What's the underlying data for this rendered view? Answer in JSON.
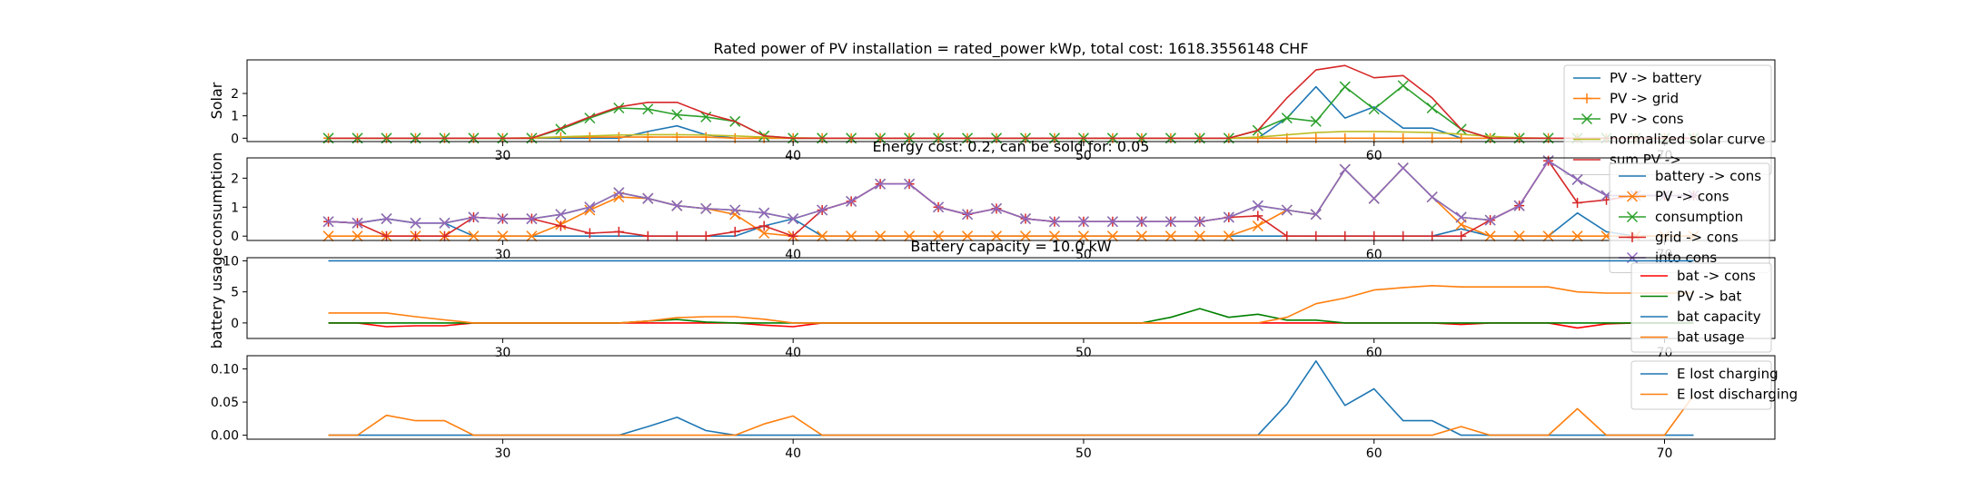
{
  "chart_data": [
    {
      "type": "line",
      "title": "Rated power of PV installation = rated_power kWp, total cost: 1618.3556148 CHF",
      "ylabel": "Solar",
      "xlim": [
        21.2,
        73.8
      ],
      "ylim": [
        -0.15,
        3.5
      ],
      "xticks": [
        30,
        40,
        50,
        60,
        70
      ],
      "yticks": [
        0,
        1,
        2
      ],
      "legend_position": "upper-right",
      "x": [
        24,
        25,
        26,
        27,
        28,
        29,
        30,
        31,
        32,
        33,
        34,
        35,
        36,
        37,
        38,
        39,
        40,
        41,
        42,
        43,
        44,
        45,
        46,
        47,
        48,
        49,
        50,
        51,
        52,
        53,
        54,
        55,
        56,
        57,
        58,
        59,
        60,
        61,
        62,
        63,
        64,
        65,
        66,
        67,
        68,
        69,
        70,
        71
      ],
      "series": [
        {
          "name": "PV -> battery",
          "color": "#1f77b4",
          "marker": "none",
          "values": [
            0,
            0,
            0,
            0,
            0,
            0,
            0,
            0,
            0,
            0,
            0,
            0.3,
            0.55,
            0.15,
            0,
            0,
            0,
            0,
            0,
            0,
            0,
            0,
            0,
            0,
            0,
            0,
            0,
            0,
            0,
            0,
            0,
            0,
            0,
            0.9,
            2.3,
            0.9,
            1.4,
            0.45,
            0.45,
            0,
            0,
            0,
            0,
            0,
            0,
            0,
            0,
            0
          ]
        },
        {
          "name": "PV -> grid",
          "color": "#ff7f0e",
          "marker": "plus",
          "values": [
            0,
            0,
            0,
            0,
            0,
            0,
            0,
            0,
            0.05,
            0.05,
            0.05,
            0.05,
            0.05,
            0.05,
            0,
            0,
            0,
            0,
            0,
            0,
            0,
            0,
            0,
            0,
            0,
            0,
            0,
            0,
            0,
            0,
            0,
            0,
            0,
            0,
            0,
            0,
            0,
            0,
            0,
            0,
            0,
            0,
            0,
            0,
            0,
            0,
            0,
            0
          ]
        },
        {
          "name": "PV -> cons",
          "color": "#2ca02c",
          "marker": "x",
          "values": [
            0,
            0,
            0,
            0,
            0,
            0,
            0,
            0,
            0.4,
            0.9,
            1.35,
            1.3,
            1.05,
            0.95,
            0.75,
            0.1,
            0,
            0,
            0,
            0,
            0,
            0,
            0,
            0,
            0,
            0,
            0,
            0,
            0,
            0,
            0,
            0,
            0.35,
            0.9,
            0.75,
            2.3,
            1.3,
            2.35,
            1.35,
            0.4,
            0,
            0,
            0,
            0,
            0,
            0,
            0,
            0
          ]
        },
        {
          "name": "normalized solar curve",
          "color": "#bcbd22",
          "marker": "none",
          "values": [
            0,
            0,
            0,
            0,
            0,
            0,
            0,
            0.02,
            0.06,
            0.1,
            0.14,
            0.16,
            0.16,
            0.14,
            0.1,
            0.05,
            0.02,
            0,
            0,
            0,
            0,
            0,
            0,
            0,
            0,
            0,
            0,
            0,
            0,
            0,
            0,
            0,
            0.05,
            0.15,
            0.25,
            0.3,
            0.3,
            0.28,
            0.25,
            0.18,
            0.08,
            0.02,
            0,
            0,
            0,
            0,
            0,
            0
          ]
        },
        {
          "name": "sum PV ->",
          "color": "#d62728",
          "marker": "none",
          "values": [
            0,
            0,
            0,
            0,
            0,
            0,
            0,
            0,
            0.45,
            0.95,
            1.4,
            1.6,
            1.6,
            1.1,
            0.75,
            0.1,
            0,
            0,
            0,
            0,
            0,
            0,
            0,
            0,
            0,
            0,
            0,
            0,
            0,
            0,
            0,
            0,
            0.35,
            1.8,
            3.05,
            3.25,
            2.7,
            2.8,
            1.8,
            0.4,
            0,
            0,
            0,
            0,
            0,
            0,
            0,
            0
          ]
        }
      ]
    },
    {
      "type": "line",
      "title": "Energy cost: 0.2, can be sold for: 0.05",
      "ylabel": "consumption",
      "xlim": [
        21.2,
        73.8
      ],
      "ylim": [
        -0.15,
        2.7
      ],
      "xticks": [
        30,
        40,
        50,
        60,
        70
      ],
      "yticks": [
        0,
        1,
        2
      ],
      "legend_position": "upper-right",
      "x": [
        24,
        25,
        26,
        27,
        28,
        29,
        30,
        31,
        32,
        33,
        34,
        35,
        36,
        37,
        38,
        39,
        40,
        41,
        42,
        43,
        44,
        45,
        46,
        47,
        48,
        49,
        50,
        51,
        52,
        53,
        54,
        55,
        56,
        57,
        58,
        59,
        60,
        61,
        62,
        63,
        64,
        65,
        66,
        67,
        68,
        69,
        70,
        71
      ],
      "series": [
        {
          "name": "battery -> cons",
          "color": "#1f77b4",
          "marker": "none",
          "values": [
            0.5,
            0.45,
            0.6,
            0.45,
            0.45,
            0,
            0,
            0,
            0,
            0,
            0,
            0,
            0,
            0,
            0,
            0.35,
            0.6,
            0,
            0,
            0,
            0,
            0,
            0,
            0,
            0,
            0,
            0,
            0,
            0,
            0,
            0,
            0,
            0,
            0,
            0,
            0,
            0,
            0,
            0,
            0.25,
            0,
            0,
            0,
            0.8,
            0.15,
            0,
            0,
            0
          ]
        },
        {
          "name": "PV -> cons",
          "color": "#ff7f0e",
          "marker": "x",
          "values": [
            0,
            0,
            0,
            0,
            0,
            0,
            0,
            0,
            0.4,
            0.9,
            1.35,
            1.3,
            1.05,
            0.95,
            0.75,
            0.1,
            0,
            0,
            0,
            0,
            0,
            0,
            0,
            0,
            0,
            0,
            0,
            0,
            0,
            0,
            0,
            0,
            0.35,
            0.9,
            0.75,
            2.3,
            1.3,
            2.35,
            1.35,
            0.4,
            0,
            0,
            0,
            0,
            0,
            0,
            0,
            0
          ]
        },
        {
          "name": "consumption",
          "color": "#2ca02c",
          "marker": "x",
          "values": [
            0.5,
            0.45,
            0.6,
            0.45,
            0.45,
            0.65,
            0.6,
            0.6,
            0.75,
            1.0,
            1.5,
            1.3,
            1.05,
            0.95,
            0.9,
            0.8,
            0.6,
            0.9,
            1.2,
            1.8,
            1.8,
            1.0,
            0.75,
            0.95,
            0.6,
            0.5,
            0.5,
            0.5,
            0.5,
            0.5,
            0.5,
            0.65,
            1.05,
            0.9,
            0.75,
            2.3,
            1.3,
            2.35,
            1.35,
            0.65,
            0.55,
            1.05,
            2.6,
            1.95,
            1.4,
            1.4,
            1.4,
            1.4
          ]
        },
        {
          "name": "grid -> cons",
          "color": "#d62728",
          "marker": "plus",
          "values": [
            0.5,
            0.45,
            0,
            0,
            0,
            0.65,
            0.6,
            0.6,
            0.35,
            0.1,
            0.15,
            0,
            0,
            0,
            0.15,
            0.35,
            0,
            0.9,
            1.2,
            1.8,
            1.8,
            1.0,
            0.75,
            0.95,
            0.6,
            0.5,
            0.5,
            0.5,
            0.5,
            0.5,
            0.5,
            0.65,
            0.7,
            0,
            0,
            0,
            0,
            0,
            0,
            0,
            0.55,
            1.05,
            2.6,
            1.15,
            1.25,
            1.4,
            1.4,
            1.4
          ]
        },
        {
          "name": "into cons",
          "color": "#9467bd",
          "marker": "x",
          "values": [
            0.5,
            0.45,
            0.6,
            0.45,
            0.45,
            0.65,
            0.6,
            0.6,
            0.75,
            1.0,
            1.5,
            1.3,
            1.05,
            0.95,
            0.9,
            0.8,
            0.6,
            0.9,
            1.2,
            1.8,
            1.8,
            1.0,
            0.75,
            0.95,
            0.6,
            0.5,
            0.5,
            0.5,
            0.5,
            0.5,
            0.5,
            0.65,
            1.05,
            0.9,
            0.75,
            2.3,
            1.3,
            2.35,
            1.35,
            0.65,
            0.55,
            1.05,
            2.6,
            1.95,
            1.4,
            1.4,
            1.4,
            1.4
          ]
        }
      ]
    },
    {
      "type": "line",
      "title": "Battery capacity = 10.0 kW",
      "ylabel": "battery usage",
      "xlim": [
        21.2,
        73.8
      ],
      "ylim": [
        -2.5,
        10.5
      ],
      "xticks": [
        30,
        40,
        50,
        60,
        70
      ],
      "yticks": [
        0,
        5,
        10
      ],
      "legend_position": "upper-right",
      "x": [
        24,
        25,
        26,
        27,
        28,
        29,
        30,
        31,
        32,
        33,
        34,
        35,
        36,
        37,
        38,
        39,
        40,
        41,
        42,
        43,
        44,
        45,
        46,
        47,
        48,
        49,
        50,
        51,
        52,
        53,
        54,
        55,
        56,
        57,
        58,
        59,
        60,
        61,
        62,
        63,
        64,
        65,
        66,
        67,
        68,
        69,
        70,
        71
      ],
      "series": [
        {
          "name": "bat -> cons",
          "color": "#ff0000",
          "marker": "none",
          "values": [
            0,
            0,
            -0.6,
            -0.45,
            -0.45,
            0,
            0,
            0,
            0,
            0,
            0,
            0,
            0,
            0,
            0,
            -0.35,
            -0.6,
            0,
            0,
            0,
            0,
            0,
            0,
            0,
            0,
            0,
            0,
            0,
            0,
            0,
            0,
            0,
            0,
            0,
            0,
            0,
            0,
            0,
            0,
            -0.25,
            0,
            0,
            0,
            -0.8,
            -0.15,
            0,
            0,
            0
          ]
        },
        {
          "name": "PV -> bat",
          "color": "#008000",
          "marker": "none",
          "values": [
            0,
            0,
            0,
            0,
            0,
            0,
            0,
            0,
            0,
            0,
            0,
            0.3,
            0.55,
            0.15,
            0,
            0,
            0,
            0,
            0,
            0,
            0,
            0,
            0,
            0,
            0,
            0,
            0,
            0,
            0,
            0.9,
            2.3,
            0.9,
            1.4,
            0.45,
            0.45,
            0,
            0,
            0,
            0,
            0,
            0,
            0,
            0,
            0,
            0,
            0,
            0,
            0
          ]
        },
        {
          "name": "bat capacity",
          "color": "#1f77b4",
          "marker": "none",
          "values": [
            10,
            10,
            10,
            10,
            10,
            10,
            10,
            10,
            10,
            10,
            10,
            10,
            10,
            10,
            10,
            10,
            10,
            10,
            10,
            10,
            10,
            10,
            10,
            10,
            10,
            10,
            10,
            10,
            10,
            10,
            10,
            10,
            10,
            10,
            10,
            10,
            10,
            10,
            10,
            10,
            10,
            10,
            10,
            10,
            10,
            10,
            10,
            10
          ]
        },
        {
          "name": "bat usage",
          "color": "#ff7f0e",
          "marker": "none",
          "values": [
            1.6,
            1.6,
            1.6,
            1.0,
            0.5,
            0,
            0,
            0,
            0,
            0,
            0,
            0.3,
            0.85,
            1.0,
            1.0,
            0.6,
            0,
            0,
            0,
            0,
            0,
            0,
            0,
            0,
            0,
            0,
            0,
            0,
            0,
            0,
            0,
            0,
            0,
            0.9,
            3.1,
            4.0,
            5.3,
            5.7,
            6.0,
            5.8,
            5.8,
            5.8,
            5.8,
            5.0,
            4.8,
            4.8,
            4.8,
            4.8
          ]
        }
      ]
    },
    {
      "type": "line",
      "title": "",
      "ylabel": "",
      "xlim": [
        21.2,
        73.8
      ],
      "ylim": [
        -0.006,
        0.12
      ],
      "xticks": [
        30,
        40,
        50,
        60,
        70
      ],
      "yticks": [
        0.0,
        0.05,
        0.1
      ],
      "ytick_labels": [
        "0.00",
        "0.05",
        "0.10"
      ],
      "legend_position": "upper-right",
      "x": [
        24,
        25,
        26,
        27,
        28,
        29,
        30,
        31,
        32,
        33,
        34,
        35,
        36,
        37,
        38,
        39,
        40,
        41,
        42,
        43,
        44,
        45,
        46,
        47,
        48,
        49,
        50,
        51,
        52,
        53,
        54,
        55,
        56,
        57,
        58,
        59,
        60,
        61,
        62,
        63,
        64,
        65,
        66,
        67,
        68,
        69,
        70,
        71
      ],
      "series": [
        {
          "name": "E lost charging",
          "color": "#1f77b4",
          "marker": "none",
          "values": [
            0,
            0,
            0,
            0,
            0,
            0,
            0,
            0,
            0,
            0,
            0,
            0.013,
            0.027,
            0.007,
            0,
            0,
            0,
            0,
            0,
            0,
            0,
            0,
            0,
            0,
            0,
            0,
            0,
            0,
            0,
            0,
            0,
            0,
            0,
            0.047,
            0.112,
            0.045,
            0.07,
            0.022,
            0.022,
            0,
            0,
            0,
            0,
            0,
            0,
            0,
            0,
            0
          ]
        },
        {
          "name": "E lost discharging",
          "color": "#ff7f0e",
          "marker": "none",
          "values": [
            0,
            0,
            0.03,
            0.022,
            0.022,
            0,
            0,
            0,
            0,
            0,
            0,
            0,
            0,
            0,
            0,
            0.017,
            0.029,
            0,
            0,
            0,
            0,
            0,
            0,
            0,
            0,
            0,
            0,
            0,
            0,
            0,
            0,
            0,
            0,
            0,
            0,
            0,
            0,
            0,
            0,
            0.013,
            0,
            0,
            0,
            0.04,
            0,
            0,
            0,
            0.06
          ]
        }
      ]
    }
  ]
}
